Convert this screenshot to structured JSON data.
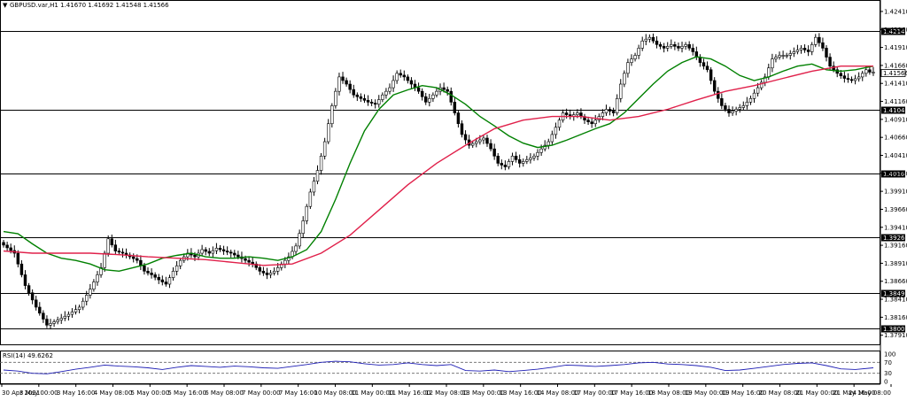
{
  "chart_data": {
    "type": "candlestick",
    "header": {
      "symbol": "GBPUSD.var,H1",
      "open": "1.41670",
      "high": "1.41692",
      "low": "1.41548",
      "close": "1.41566"
    },
    "price_axis": {
      "ticks": [
        "1.42410",
        "1.42160",
        "1.41910",
        "1.41660",
        "1.41410",
        "1.41160",
        "1.40910",
        "1.40660",
        "1.40410",
        "1.40160",
        "1.39910",
        "1.39660",
        "1.39410",
        "1.39160",
        "1.38910",
        "1.38660",
        "1.38410",
        "1.38160",
        "1.37910"
      ],
      "ylim": [
        1.3782,
        1.4252
      ]
    },
    "horizontal_levels": [
      {
        "value": 1.42141,
        "label": "1.42141"
      },
      {
        "value": 1.41045,
        "label": "1.41045"
      },
      {
        "value": 1.40162,
        "label": "1.40162"
      },
      {
        "value": 1.39268,
        "label": "1.39268"
      },
      {
        "value": 1.38497,
        "label": "1.38497"
      },
      {
        "value": 1.38,
        "label": "1.38000"
      }
    ],
    "current_price": {
      "value": 1.41566,
      "label": "1.41566"
    },
    "time_axis": [
      "30 Apr 2021",
      "3 May 00:00",
      "3 May 16:00",
      "4 May 08:00",
      "5 May 00:00",
      "5 May 16:00",
      "6 May 08:00",
      "7 May 00:00",
      "7 May 16:00",
      "10 May 08:00",
      "11 May 00:00",
      "11 May 16:00",
      "12 May 08:00",
      "13 May 00:00",
      "13 May 16:00",
      "14 May 08:00",
      "17 May 00:00",
      "17 May 16:00",
      "18 May 08:00",
      "19 May 00:00",
      "19 May 16:00",
      "20 May 08:00",
      "21 May 00:00",
      "21 May 16:00",
      "24 May 08:00"
    ],
    "close_path": [
      [
        0,
        1.392
      ],
      [
        4,
        1.3905
      ],
      [
        7,
        1.386
      ],
      [
        10,
        1.383
      ],
      [
        13,
        1.3805
      ],
      [
        16,
        1.3812
      ],
      [
        19,
        1.382
      ],
      [
        22,
        1.383
      ],
      [
        25,
        1.3855
      ],
      [
        28,
        1.3885
      ],
      [
        30,
        1.3925
      ],
      [
        32,
        1.3908
      ],
      [
        34,
        1.3905
      ],
      [
        36,
        1.39
      ],
      [
        38,
        1.3895
      ],
      [
        40,
        1.388
      ],
      [
        42,
        1.3875
      ],
      [
        44,
        1.3868
      ],
      [
        46,
        1.3862
      ],
      [
        48,
        1.388
      ],
      [
        50,
        1.3895
      ],
      [
        52,
        1.3905
      ],
      [
        54,
        1.39
      ],
      [
        56,
        1.391
      ],
      [
        58,
        1.3905
      ],
      [
        60,
        1.3912
      ],
      [
        62,
        1.3908
      ],
      [
        64,
        1.3905
      ],
      [
        66,
        1.39
      ],
      [
        68,
        1.3895
      ],
      [
        70,
        1.389
      ],
      [
        72,
        1.388
      ],
      [
        74,
        1.3875
      ],
      [
        76,
        1.388
      ],
      [
        78,
        1.389
      ],
      [
        80,
        1.39
      ],
      [
        82,
        1.3915
      ],
      [
        84,
        1.395
      ],
      [
        86,
        1.399
      ],
      [
        88,
        1.402
      ],
      [
        90,
        1.406
      ],
      [
        92,
        1.411
      ],
      [
        94,
        1.415
      ],
      [
        96,
        1.414
      ],
      [
        98,
        1.4125
      ],
      [
        100,
        1.412
      ],
      [
        102,
        1.4115
      ],
      [
        104,
        1.4112
      ],
      [
        106,
        1.4125
      ],
      [
        108,
        1.4135
      ],
      [
        110,
        1.4155
      ],
      [
        112,
        1.415
      ],
      [
        114,
        1.414
      ],
      [
        116,
        1.413
      ],
      [
        118,
        1.4115
      ],
      [
        120,
        1.4125
      ],
      [
        122,
        1.4135
      ],
      [
        124,
        1.413
      ],
      [
        126,
        1.41
      ],
      [
        128,
        1.407
      ],
      [
        130,
        1.4055
      ],
      [
        132,
        1.406
      ],
      [
        134,
        1.4065
      ],
      [
        136,
        1.405
      ],
      [
        138,
        1.403
      ],
      [
        140,
        1.4025
      ],
      [
        142,
        1.404
      ],
      [
        144,
        1.403
      ],
      [
        146,
        1.4035
      ],
      [
        148,
        1.404
      ],
      [
        150,
        1.405
      ],
      [
        152,
        1.406
      ],
      [
        154,
        1.408
      ],
      [
        156,
        1.41
      ],
      [
        158,
        1.4095
      ],
      [
        160,
        1.41
      ],
      [
        162,
        1.409
      ],
      [
        164,
        1.4085
      ],
      [
        166,
        1.4095
      ],
      [
        168,
        1.4105
      ],
      [
        170,
        1.41
      ],
      [
        172,
        1.414
      ],
      [
        174,
        1.417
      ],
      [
        176,
        1.418
      ],
      [
        178,
        1.42
      ],
      [
        180,
        1.4205
      ],
      [
        182,
        1.4195
      ],
      [
        184,
        1.419
      ],
      [
        186,
        1.4195
      ],
      [
        188,
        1.419
      ],
      [
        190,
        1.4195
      ],
      [
        192,
        1.4185
      ],
      [
        194,
        1.417
      ],
      [
        196,
        1.416
      ],
      [
        198,
        1.413
      ],
      [
        200,
        1.411
      ],
      [
        202,
        1.41
      ],
      [
        204,
        1.4105
      ],
      [
        206,
        1.411
      ],
      [
        208,
        1.412
      ],
      [
        210,
        1.4135
      ],
      [
        212,
        1.415
      ],
      [
        214,
        1.4175
      ],
      [
        216,
        1.418
      ],
      [
        218,
        1.418
      ],
      [
        220,
        1.4185
      ],
      [
        222,
        1.419
      ],
      [
        224,
        1.4185
      ],
      [
        226,
        1.4205
      ],
      [
        228,
        1.419
      ],
      [
        230,
        1.4165
      ],
      [
        232,
        1.4155
      ],
      [
        234,
        1.4148
      ],
      [
        236,
        1.4145
      ],
      [
        238,
        1.415
      ],
      [
        240,
        1.416
      ],
      [
        241,
        1.41566
      ]
    ],
    "bar_count": 242,
    "moving_averages": [
      {
        "color": "#008000",
        "points": [
          [
            0,
            1.3935
          ],
          [
            4,
            1.3932
          ],
          [
            8,
            1.3918
          ],
          [
            12,
            1.3905
          ],
          [
            16,
            1.3898
          ],
          [
            20,
            1.3895
          ],
          [
            24,
            1.389
          ],
          [
            28,
            1.3882
          ],
          [
            32,
            1.388
          ],
          [
            36,
            1.3885
          ],
          [
            40,
            1.389
          ],
          [
            44,
            1.3898
          ],
          [
            48,
            1.3902
          ],
          [
            52,
            1.3905
          ],
          [
            56,
            1.39
          ],
          [
            60,
            1.3898
          ],
          [
            64,
            1.3898
          ],
          [
            68,
            1.39
          ],
          [
            72,
            1.3898
          ],
          [
            76,
            1.3895
          ],
          [
            80,
            1.39
          ],
          [
            84,
            1.391
          ],
          [
            88,
            1.3935
          ],
          [
            92,
            1.398
          ],
          [
            96,
            1.403
          ],
          [
            100,
            1.4075
          ],
          [
            104,
            1.4105
          ],
          [
            108,
            1.4125
          ],
          [
            112,
            1.4132
          ],
          [
            116,
            1.4138
          ],
          [
            120,
            1.4135
          ],
          [
            124,
            1.4125
          ],
          [
            128,
            1.4112
          ],
          [
            132,
            1.4095
          ],
          [
            136,
            1.4082
          ],
          [
            140,
            1.4068
          ],
          [
            144,
            1.4058
          ],
          [
            148,
            1.4052
          ],
          [
            152,
            1.4055
          ],
          [
            156,
            1.4062
          ],
          [
            160,
            1.407
          ],
          [
            164,
            1.4078
          ],
          [
            168,
            1.4085
          ],
          [
            172,
            1.41
          ],
          [
            176,
            1.412
          ],
          [
            180,
            1.414
          ],
          [
            184,
            1.4158
          ],
          [
            188,
            1.417
          ],
          [
            192,
            1.4178
          ],
          [
            196,
            1.4175
          ],
          [
            200,
            1.4165
          ],
          [
            204,
            1.4152
          ],
          [
            208,
            1.4145
          ],
          [
            212,
            1.415
          ],
          [
            216,
            1.4158
          ],
          [
            220,
            1.4165
          ],
          [
            224,
            1.4168
          ],
          [
            228,
            1.416
          ],
          [
            232,
            1.4158
          ],
          [
            236,
            1.416
          ],
          [
            241,
            1.4165
          ]
        ]
      },
      {
        "color": "#e0204a",
        "points": [
          [
            0,
            1.3908
          ],
          [
            8,
            1.3905
          ],
          [
            16,
            1.3905
          ],
          [
            24,
            1.3905
          ],
          [
            32,
            1.3903
          ],
          [
            40,
            1.39
          ],
          [
            48,
            1.3898
          ],
          [
            56,
            1.3896
          ],
          [
            64,
            1.3892
          ],
          [
            72,
            1.3888
          ],
          [
            80,
            1.389
          ],
          [
            88,
            1.3905
          ],
          [
            96,
            1.393
          ],
          [
            104,
            1.3965
          ],
          [
            112,
            1.4
          ],
          [
            120,
            1.403
          ],
          [
            128,
            1.4055
          ],
          [
            136,
            1.4078
          ],
          [
            144,
            1.409
          ],
          [
            152,
            1.4095
          ],
          [
            160,
            1.4095
          ],
          [
            168,
            1.409
          ],
          [
            176,
            1.4095
          ],
          [
            184,
            1.4105
          ],
          [
            192,
            1.4118
          ],
          [
            200,
            1.413
          ],
          [
            208,
            1.4138
          ],
          [
            216,
            1.4148
          ],
          [
            224,
            1.4158
          ],
          [
            232,
            1.4165
          ],
          [
            241,
            1.4165
          ]
        ]
      }
    ],
    "rsi": {
      "label": "RSI(14) 49.6262",
      "levels": [
        "100",
        "70",
        "30",
        "0"
      ],
      "ylim": [
        0,
        100
      ],
      "points": [
        [
          0,
          42
        ],
        [
          4,
          38
        ],
        [
          8,
          30
        ],
        [
          12,
          28
        ],
        [
          16,
          36
        ],
        [
          20,
          45
        ],
        [
          24,
          52
        ],
        [
          28,
          60
        ],
        [
          32,
          56
        ],
        [
          36,
          54
        ],
        [
          40,
          50
        ],
        [
          44,
          44
        ],
        [
          48,
          52
        ],
        [
          52,
          58
        ],
        [
          56,
          55
        ],
        [
          60,
          52
        ],
        [
          64,
          56
        ],
        [
          68,
          54
        ],
        [
          72,
          50
        ],
        [
          76,
          48
        ],
        [
          80,
          55
        ],
        [
          84,
          62
        ],
        [
          88,
          70
        ],
        [
          92,
          74
        ],
        [
          96,
          72
        ],
        [
          100,
          65
        ],
        [
          104,
          60
        ],
        [
          108,
          62
        ],
        [
          112,
          68
        ],
        [
          116,
          62
        ],
        [
          120,
          58
        ],
        [
          124,
          62
        ],
        [
          128,
          40
        ],
        [
          132,
          38
        ],
        [
          136,
          42
        ],
        [
          140,
          36
        ],
        [
          144,
          40
        ],
        [
          148,
          45
        ],
        [
          152,
          52
        ],
        [
          156,
          60
        ],
        [
          160,
          58
        ],
        [
          164,
          55
        ],
        [
          168,
          58
        ],
        [
          172,
          62
        ],
        [
          176,
          68
        ],
        [
          180,
          70
        ],
        [
          184,
          64
        ],
        [
          188,
          62
        ],
        [
          192,
          58
        ],
        [
          196,
          52
        ],
        [
          200,
          40
        ],
        [
          204,
          42
        ],
        [
          208,
          48
        ],
        [
          212,
          55
        ],
        [
          216,
          62
        ],
        [
          220,
          66
        ],
        [
          224,
          68
        ],
        [
          228,
          58
        ],
        [
          232,
          46
        ],
        [
          236,
          44
        ],
        [
          241,
          50
        ]
      ]
    }
  }
}
